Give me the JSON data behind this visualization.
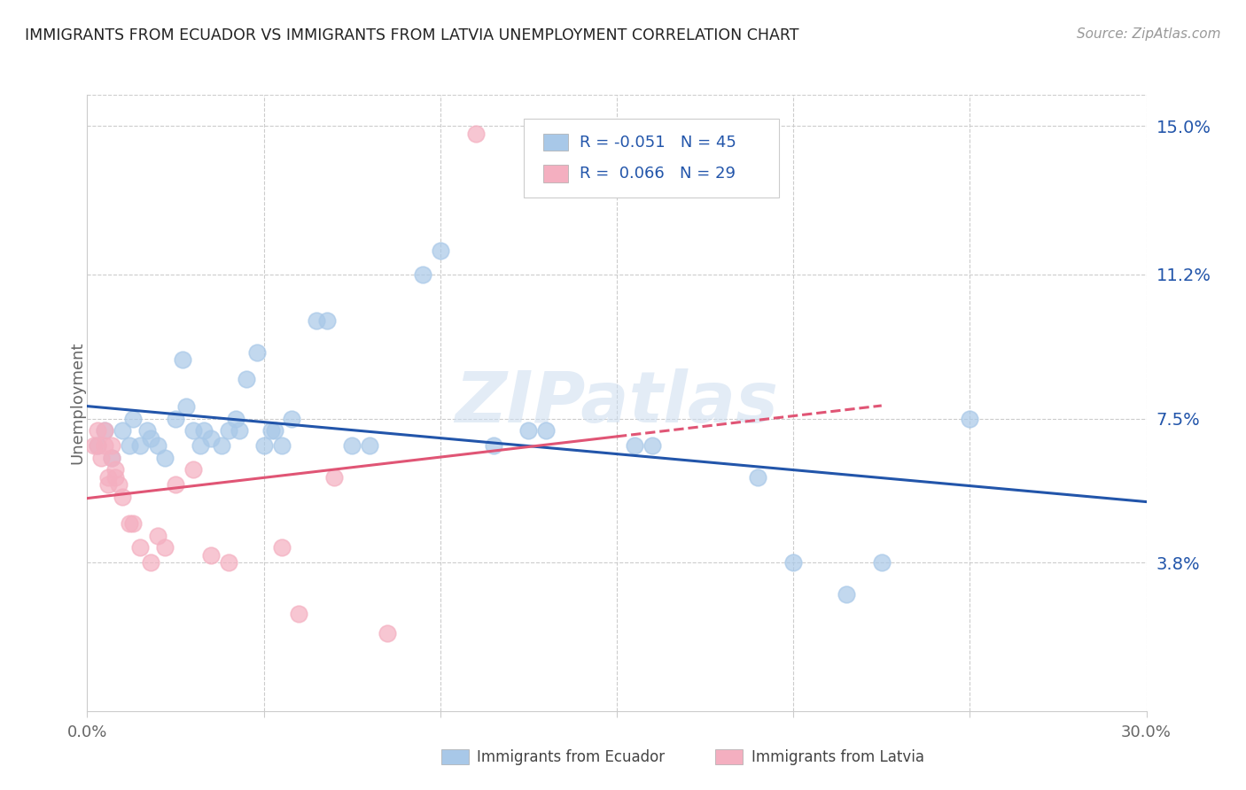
{
  "title": "IMMIGRANTS FROM ECUADOR VS IMMIGRANTS FROM LATVIA UNEMPLOYMENT CORRELATION CHART",
  "source": "Source: ZipAtlas.com",
  "ylabel": "Unemployment",
  "x_min": 0.0,
  "x_max": 0.3,
  "y_min": 0.0,
  "y_max": 0.158,
  "x_ticks": [
    0.0,
    0.05,
    0.1,
    0.15,
    0.2,
    0.25,
    0.3
  ],
  "x_tick_labels": [
    "0.0%",
    "",
    "",
    "",
    "",
    "",
    "30.0%"
  ],
  "y_tick_labels_right": [
    "3.8%",
    "7.5%",
    "11.2%",
    "15.0%"
  ],
  "y_tick_values_right": [
    0.038,
    0.075,
    0.112,
    0.15
  ],
  "legend_ecuador_r": "-0.051",
  "legend_ecuador_n": "45",
  "legend_latvia_r": "0.066",
  "legend_latvia_n": "29",
  "ecuador_color": "#a8c8e8",
  "latvia_color": "#f4afc0",
  "ecuador_line_color": "#2255aa",
  "latvia_line_color": "#e05575",
  "watermark": "ZIPatlas",
  "ecuador_points": [
    [
      0.003,
      0.068
    ],
    [
      0.005,
      0.072
    ],
    [
      0.007,
      0.065
    ],
    [
      0.01,
      0.072
    ],
    [
      0.012,
      0.068
    ],
    [
      0.013,
      0.075
    ],
    [
      0.015,
      0.068
    ],
    [
      0.017,
      0.072
    ],
    [
      0.018,
      0.07
    ],
    [
      0.02,
      0.068
    ],
    [
      0.022,
      0.065
    ],
    [
      0.025,
      0.075
    ],
    [
      0.027,
      0.09
    ],
    [
      0.028,
      0.078
    ],
    [
      0.03,
      0.072
    ],
    [
      0.032,
      0.068
    ],
    [
      0.033,
      0.072
    ],
    [
      0.035,
      0.07
    ],
    [
      0.038,
      0.068
    ],
    [
      0.04,
      0.072
    ],
    [
      0.042,
      0.075
    ],
    [
      0.043,
      0.072
    ],
    [
      0.045,
      0.085
    ],
    [
      0.048,
      0.092
    ],
    [
      0.05,
      0.068
    ],
    [
      0.052,
      0.072
    ],
    [
      0.053,
      0.072
    ],
    [
      0.055,
      0.068
    ],
    [
      0.058,
      0.075
    ],
    [
      0.065,
      0.1
    ],
    [
      0.068,
      0.1
    ],
    [
      0.075,
      0.068
    ],
    [
      0.08,
      0.068
    ],
    [
      0.095,
      0.112
    ],
    [
      0.1,
      0.118
    ],
    [
      0.115,
      0.068
    ],
    [
      0.125,
      0.072
    ],
    [
      0.13,
      0.072
    ],
    [
      0.155,
      0.068
    ],
    [
      0.16,
      0.068
    ],
    [
      0.19,
      0.06
    ],
    [
      0.2,
      0.038
    ],
    [
      0.215,
      0.03
    ],
    [
      0.225,
      0.038
    ],
    [
      0.25,
      0.075
    ]
  ],
  "latvia_points": [
    [
      0.002,
      0.068
    ],
    [
      0.003,
      0.072
    ],
    [
      0.003,
      0.068
    ],
    [
      0.004,
      0.065
    ],
    [
      0.005,
      0.068
    ],
    [
      0.005,
      0.072
    ],
    [
      0.006,
      0.058
    ],
    [
      0.006,
      0.06
    ],
    [
      0.007,
      0.065
    ],
    [
      0.007,
      0.068
    ],
    [
      0.008,
      0.06
    ],
    [
      0.008,
      0.062
    ],
    [
      0.009,
      0.058
    ],
    [
      0.01,
      0.055
    ],
    [
      0.012,
      0.048
    ],
    [
      0.013,
      0.048
    ],
    [
      0.015,
      0.042
    ],
    [
      0.018,
      0.038
    ],
    [
      0.02,
      0.045
    ],
    [
      0.022,
      0.042
    ],
    [
      0.025,
      0.058
    ],
    [
      0.03,
      0.062
    ],
    [
      0.035,
      0.04
    ],
    [
      0.04,
      0.038
    ],
    [
      0.055,
      0.042
    ],
    [
      0.06,
      0.025
    ],
    [
      0.07,
      0.06
    ],
    [
      0.085,
      0.02
    ],
    [
      0.11,
      0.148
    ]
  ]
}
